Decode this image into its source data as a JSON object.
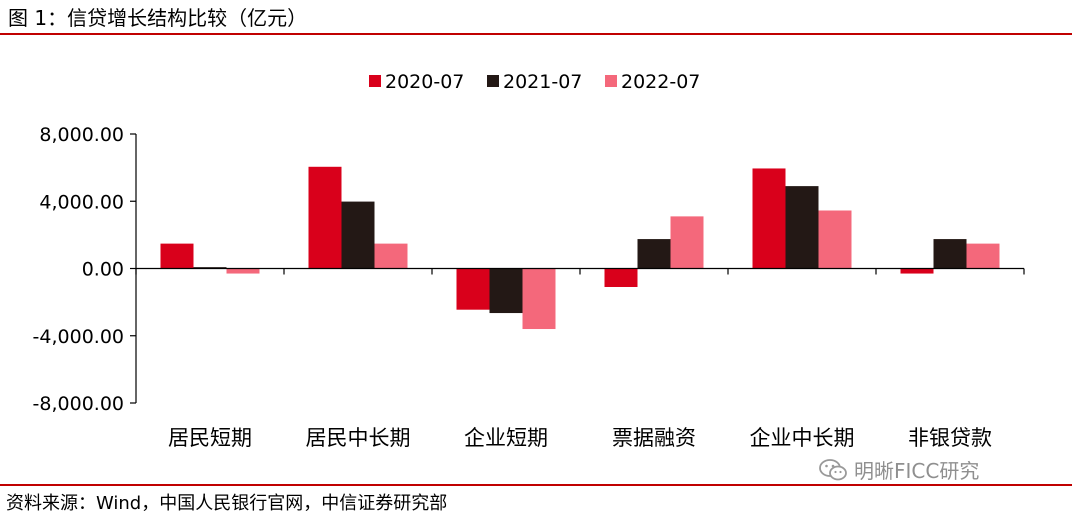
{
  "page": {
    "title": "图 1：信贷增长结构比较（亿元）",
    "source": "资料来源：Wind，中国人民银行官网，中信证券研究部",
    "watermark": "明晰FICC研究",
    "watermark_icon": "wechat-icon",
    "rule_color": "#c00000"
  },
  "chart_data": {
    "type": "bar",
    "title": "",
    "xlabel": "",
    "ylabel": "",
    "categories": [
      "居民短期",
      "居民中长期",
      "企业短期",
      "票据融资",
      "企业中长期",
      "非银贷款"
    ],
    "series": [
      {
        "name": "2020-07",
        "color": "#d9001b",
        "values": [
          1480,
          6050,
          -2450,
          -1100,
          5950,
          -300
        ]
      },
      {
        "name": "2021-07",
        "color": "#231815",
        "values": [
          80,
          3980,
          -2650,
          1750,
          4900,
          1750
        ]
      },
      {
        "name": "2022-07",
        "color": "#f4687b",
        "values": [
          -300,
          1480,
          -3600,
          3100,
          3450,
          1480
        ]
      }
    ],
    "ylim": [
      -8000,
      8000
    ],
    "yticks": [
      8000,
      4000,
      0,
      -4000,
      -8000
    ],
    "ytick_labels": [
      "8,000.00",
      "4,000.00",
      "0.00",
      "-4,000.00",
      "-8,000.00"
    ],
    "legend_position": "top-center",
    "grid": false
  }
}
